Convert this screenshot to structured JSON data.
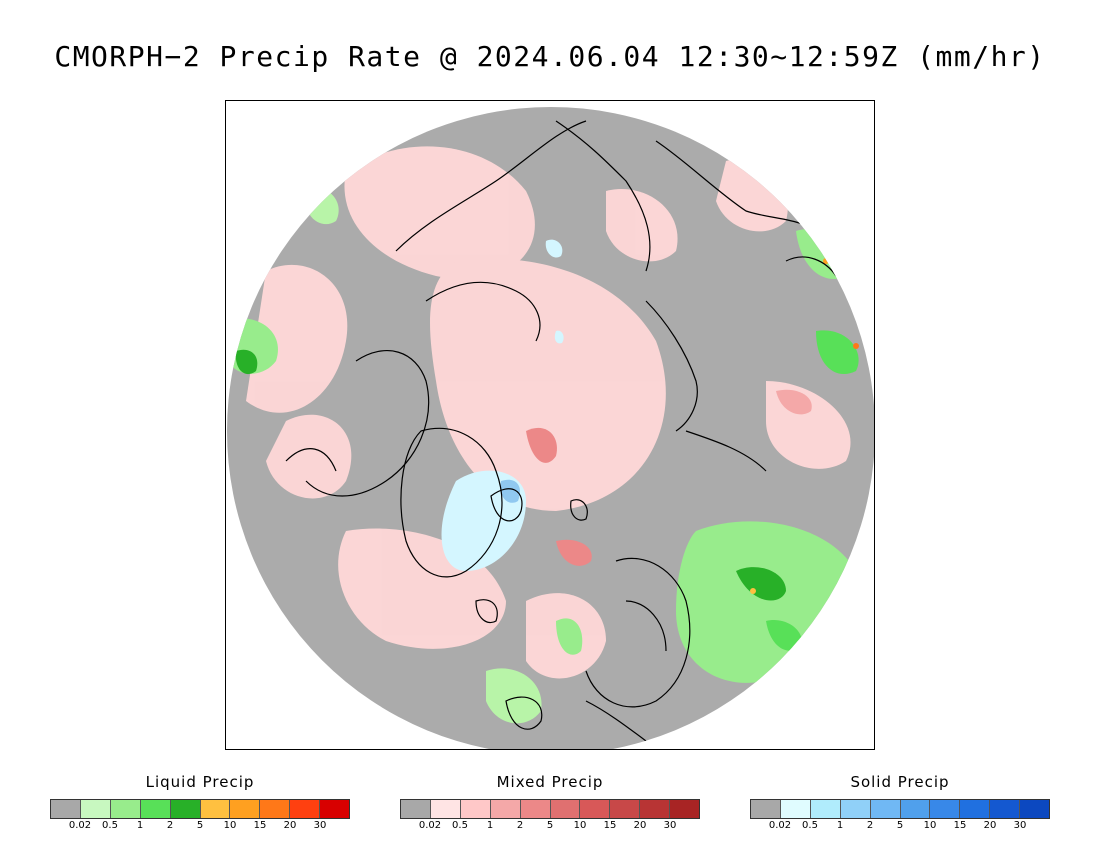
{
  "title": "CMORPH−2 Precip Rate @ 2024.06.04 12:30~12:59Z (mm/hr)",
  "map": {
    "projection": "north polar stereographic",
    "background_color": "#ababab",
    "coastline_color": "#000000"
  },
  "legends": [
    {
      "label": "Liquid Precip",
      "colors": [
        "#a8a8a8",
        "#c8f8c0",
        "#98ec8c",
        "#58e058",
        "#28b028",
        "#ffc040",
        "#ffa020",
        "#ff7818",
        "#ff4010",
        "#d80000"
      ],
      "ticks": [
        "0.02",
        "0.5",
        "1",
        "2",
        "5",
        "10",
        "15",
        "20",
        "30"
      ]
    },
    {
      "label": "Mixed Precip",
      "colors": [
        "#a8a8a8",
        "#ffe4e4",
        "#ffc8c8",
        "#f4a8a8",
        "#ec8888",
        "#e07070",
        "#d85858",
        "#c84848",
        "#b83434",
        "#a82424"
      ],
      "ticks": [
        "0.02",
        "0.5",
        "1",
        "2",
        "5",
        "10",
        "15",
        "20",
        "30"
      ]
    },
    {
      "label": "Solid Precip",
      "colors": [
        "#a8a8a8",
        "#e0fcff",
        "#b0ecfc",
        "#90d0f8",
        "#70b8f4",
        "#50a0ec",
        "#3888e8",
        "#2070e0",
        "#1458d0",
        "#0c48c0"
      ],
      "ticks": [
        "0.02",
        "0.5",
        "1",
        "2",
        "5",
        "10",
        "15",
        "20",
        "30"
      ]
    }
  ]
}
